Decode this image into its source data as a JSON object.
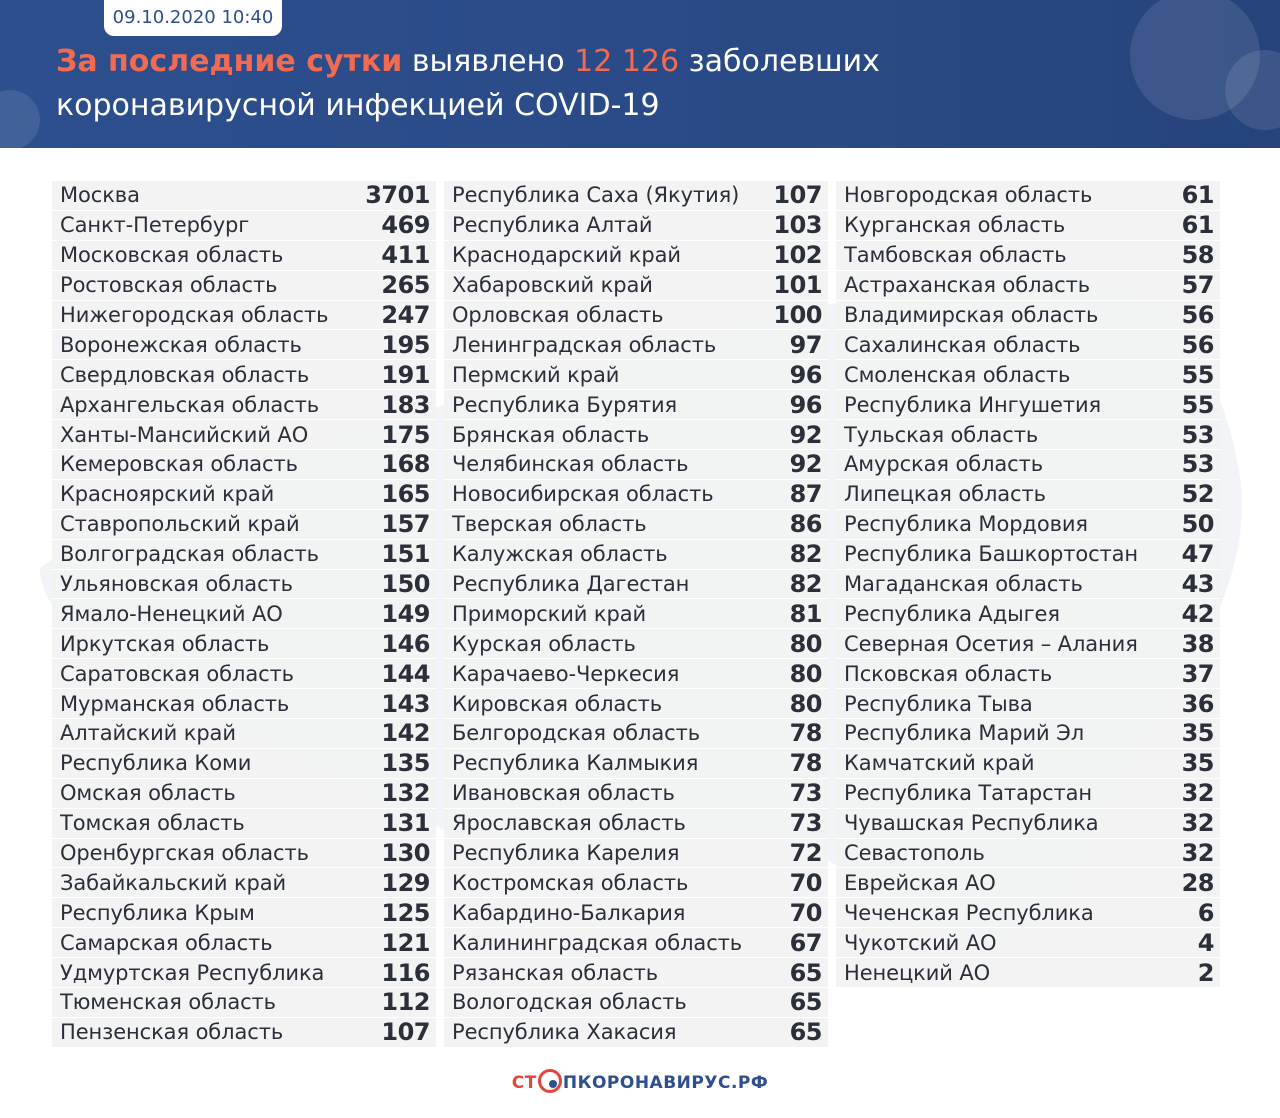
{
  "header": {
    "date": "09.10.2020 10:40",
    "headline_red": "За последние сутки",
    "headline_mid": " выявлено ",
    "headline_num": "12 126",
    "headline_rest": "  заболевших",
    "headline_line2": "коронавирусной инфекцией COVID-19"
  },
  "colors": {
    "header_bg": "#2d4f8e",
    "accent_red": "#f26a4f",
    "row_bg": "#f2f2f2",
    "text": "#2a2f3a"
  },
  "columns": [
    [
      {
        "name": "Москва",
        "value": "3701"
      },
      {
        "name": "Санкт-Петербург",
        "value": "469"
      },
      {
        "name": "Московская область",
        "value": "411"
      },
      {
        "name": "Ростовская область",
        "value": "265"
      },
      {
        "name": "Нижегородская область",
        "value": "247"
      },
      {
        "name": "Воронежская область",
        "value": "195"
      },
      {
        "name": "Свердловская область",
        "value": "191"
      },
      {
        "name": "Архангельская область",
        "value": "183"
      },
      {
        "name": "Ханты-Мансийский АО",
        "value": "175"
      },
      {
        "name": "Кемеровская область",
        "value": "168"
      },
      {
        "name": "Красноярский край",
        "value": "165"
      },
      {
        "name": "Ставропольский край",
        "value": "157"
      },
      {
        "name": "Волгоградская область",
        "value": "151"
      },
      {
        "name": "Ульяновская область",
        "value": "150"
      },
      {
        "name": "Ямало-Ненецкий АО",
        "value": "149"
      },
      {
        "name": "Иркутская область",
        "value": "146"
      },
      {
        "name": "Саратовская область",
        "value": "144"
      },
      {
        "name": "Мурманская область",
        "value": "143"
      },
      {
        "name": "Алтайский край",
        "value": "142"
      },
      {
        "name": "Республика Коми",
        "value": "135"
      },
      {
        "name": "Омская область",
        "value": "132"
      },
      {
        "name": "Томская область",
        "value": "131"
      },
      {
        "name": "Оренбургская область",
        "value": "130"
      },
      {
        "name": "Забайкальский край",
        "value": "129"
      },
      {
        "name": "Республика Крым",
        "value": "125"
      },
      {
        "name": "Самарская область",
        "value": "121"
      },
      {
        "name": "Удмуртская Республика",
        "value": "116"
      },
      {
        "name": "Тюменская область",
        "value": "112"
      },
      {
        "name": "Пензенская область",
        "value": "107"
      }
    ],
    [
      {
        "name": "Республика Саха (Якутия)",
        "value": "107"
      },
      {
        "name": "Республика  Алтай",
        "value": "103"
      },
      {
        "name": "Краснодарский край",
        "value": "102"
      },
      {
        "name": "Хабаровский край",
        "value": "101"
      },
      {
        "name": "Орловская область",
        "value": "100"
      },
      {
        "name": "Ленинградская область",
        "value": "97"
      },
      {
        "name": "Пермский край",
        "value": "96"
      },
      {
        "name": "Республика Бурятия",
        "value": "96"
      },
      {
        "name": "Брянская область",
        "value": "92"
      },
      {
        "name": "Челябинская область",
        "value": "92"
      },
      {
        "name": "Новосибирская область",
        "value": "87"
      },
      {
        "name": "Тверская область",
        "value": "86"
      },
      {
        "name": "Калужская область",
        "value": "82"
      },
      {
        "name": "Республика Дагестан",
        "value": "82"
      },
      {
        "name": "Приморский край",
        "value": "81"
      },
      {
        "name": "Курская область",
        "value": "80"
      },
      {
        "name": "Карачаево-Черкесия",
        "value": "80"
      },
      {
        "name": "Кировская область",
        "value": "80"
      },
      {
        "name": "Белгородская область",
        "value": "78"
      },
      {
        "name": "Республика Калмыкия",
        "value": "78"
      },
      {
        "name": "Ивановская область",
        "value": "73"
      },
      {
        "name": "Ярославская область",
        "value": "73"
      },
      {
        "name": "Республика Карелия",
        "value": "72"
      },
      {
        "name": "Костромская область",
        "value": "70"
      },
      {
        "name": "Кабардино-Балкария",
        "value": "70"
      },
      {
        "name": "Калининградская область",
        "value": "67"
      },
      {
        "name": "Рязанская область",
        "value": "65"
      },
      {
        "name": "Вологодская область",
        "value": "65"
      },
      {
        "name": "Республика Хакасия",
        "value": "65"
      }
    ],
    [
      {
        "name": "Новгородская область",
        "value": "61"
      },
      {
        "name": "Курганская область",
        "value": "61"
      },
      {
        "name": "Тамбовская область",
        "value": "58"
      },
      {
        "name": "Астраханская область",
        "value": "57"
      },
      {
        "name": "Владимирская область",
        "value": "56"
      },
      {
        "name": "Сахалинская область",
        "value": "56"
      },
      {
        "name": "Смоленская область",
        "value": "55"
      },
      {
        "name": "Республика Ингушетия",
        "value": "55"
      },
      {
        "name": "Тульская область",
        "value": "53"
      },
      {
        "name": "Амурская область",
        "value": "53"
      },
      {
        "name": "Липецкая область",
        "value": "52"
      },
      {
        "name": "Республика Мордовия",
        "value": "50"
      },
      {
        "name": "Республика Башкортостан",
        "value": "47"
      },
      {
        "name": "Магаданская область",
        "value": "43"
      },
      {
        "name": "Республика Адыгея",
        "value": "42"
      },
      {
        "name": "Северная Осетия – Алания",
        "value": "38"
      },
      {
        "name": "Псковская область",
        "value": "37"
      },
      {
        "name": "Республика Тыва",
        "value": "36"
      },
      {
        "name": "Республика Марий Эл",
        "value": "35"
      },
      {
        "name": "Камчатский край",
        "value": "35"
      },
      {
        "name": "Республика Татарстан",
        "value": "32"
      },
      {
        "name": "Чувашская Республика",
        "value": "32"
      },
      {
        "name": "Севастополь",
        "value": "32"
      },
      {
        "name": "Еврейская АО",
        "value": "28"
      },
      {
        "name": "Чеченская Республика",
        "value": "6"
      },
      {
        "name": "Чукотский АО",
        "value": "4"
      },
      {
        "name": "Ненецкий АО",
        "value": "2"
      }
    ]
  ],
  "footer": {
    "logo_part1": "СТ",
    "logo_part2": "ПКОРОНАВИРУС.РФ"
  }
}
